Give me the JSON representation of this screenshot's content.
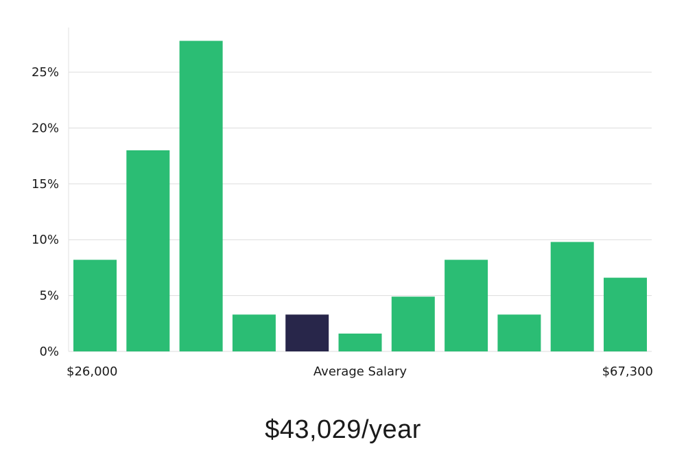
{
  "chart_data": {
    "type": "bar",
    "title": "",
    "xlabel": "Average Salary",
    "x_start_label": "$26,000",
    "x_end_label": "$67,300",
    "ylabel": "",
    "ylim": [
      0,
      29
    ],
    "yticks": [
      0,
      5,
      10,
      15,
      20,
      25
    ],
    "ytick_labels": [
      "0%",
      "5%",
      "10%",
      "15%",
      "20%",
      "25%"
    ],
    "grid": true,
    "values": [
      8.2,
      18.0,
      27.8,
      3.3,
      3.3,
      1.6,
      4.9,
      8.2,
      3.3,
      9.8,
      6.6
    ],
    "highlight_index": 4,
    "bar_color": "#2bbd74",
    "highlight_color": "#28264a"
  },
  "summary": {
    "average_salary": "$43,029/year"
  }
}
